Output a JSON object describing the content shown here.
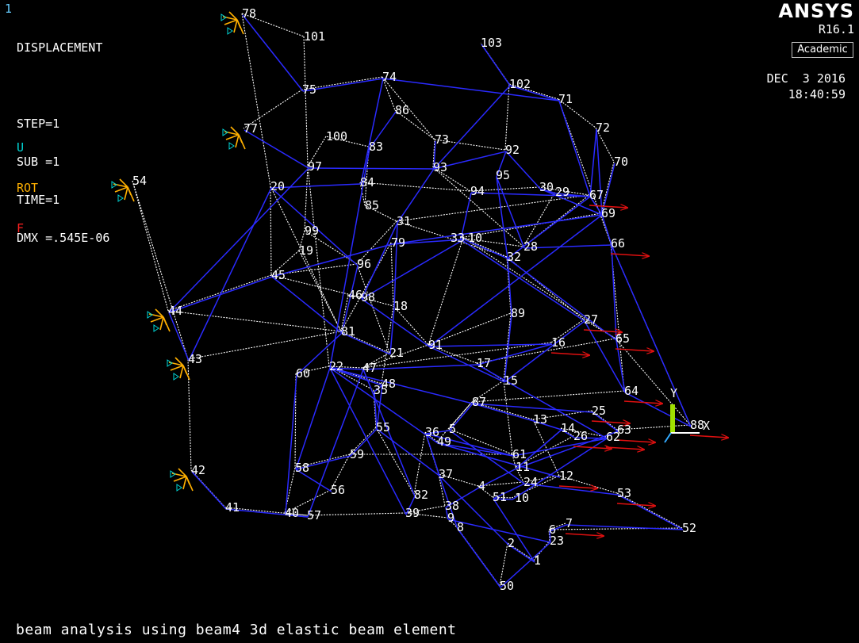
{
  "window_number": "1",
  "header": {
    "lines": [
      "DISPLACEMENT",
      "",
      "STEP=1",
      "SUB =1",
      "TIME=1",
      "DMX =.545E-06"
    ]
  },
  "legend": [
    {
      "label": "U",
      "color": "#00d8d8"
    },
    {
      "label": "ROT",
      "color": "#ffb000"
    },
    {
      "label": "F",
      "color": "#ff2020"
    }
  ],
  "branding": {
    "product": "ANSYS",
    "version": "R16.1",
    "edition": "Academic"
  },
  "date": "DEC  3 2016",
  "time": "18:40:59",
  "triad": {
    "x_label": "X",
    "y_label": "Y"
  },
  "caption": "beam analysis using beam4 3d elastic beam element",
  "colors": {
    "deformed": "#2a2aff",
    "undeformed": "#ffffff",
    "force": "#e01010",
    "support": "#ffb000",
    "triad_y": "#a0e000",
    "triad_x": "#ffffff"
  },
  "nodes": [
    {
      "id": "78"
    },
    {
      "id": "101"
    },
    {
      "id": "103"
    },
    {
      "id": "75"
    },
    {
      "id": "74"
    },
    {
      "id": "102"
    },
    {
      "id": "71"
    },
    {
      "id": "86"
    },
    {
      "id": "77"
    },
    {
      "id": "100"
    },
    {
      "id": "83"
    },
    {
      "id": "73"
    },
    {
      "id": "92"
    },
    {
      "id": "72"
    },
    {
      "id": "70"
    },
    {
      "id": "97"
    },
    {
      "id": "93"
    },
    {
      "id": "95"
    },
    {
      "id": "54"
    },
    {
      "id": "20"
    },
    {
      "id": "84"
    },
    {
      "id": "94"
    },
    {
      "id": "30"
    },
    {
      "id": "29"
    },
    {
      "id": "67"
    },
    {
      "id": "85"
    },
    {
      "id": "69"
    },
    {
      "id": "31"
    },
    {
      "id": "99"
    },
    {
      "id": "10"
    },
    {
      "id": "33"
    },
    {
      "id": "79"
    },
    {
      "id": "19"
    },
    {
      "id": "96"
    },
    {
      "id": "32"
    },
    {
      "id": "28"
    },
    {
      "id": "66"
    },
    {
      "id": "45"
    },
    {
      "id": "46"
    },
    {
      "id": "98"
    },
    {
      "id": "18"
    },
    {
      "id": "44"
    },
    {
      "id": "89"
    },
    {
      "id": "27"
    },
    {
      "id": "81"
    },
    {
      "id": "65"
    },
    {
      "id": "16"
    },
    {
      "id": "91"
    },
    {
      "id": "21"
    },
    {
      "id": "43"
    },
    {
      "id": "22"
    },
    {
      "id": "47"
    },
    {
      "id": "17"
    },
    {
      "id": "60"
    },
    {
      "id": "48"
    },
    {
      "id": "15"
    },
    {
      "id": "64"
    },
    {
      "id": "35"
    },
    {
      "id": "87"
    },
    {
      "id": "25"
    },
    {
      "id": "13"
    },
    {
      "id": "14"
    },
    {
      "id": "63"
    },
    {
      "id": "55"
    },
    {
      "id": "36"
    },
    {
      "id": "5"
    },
    {
      "id": "26"
    },
    {
      "id": "62"
    },
    {
      "id": "49"
    },
    {
      "id": "59"
    },
    {
      "id": "61"
    },
    {
      "id": "58"
    },
    {
      "id": "11"
    },
    {
      "id": "37"
    },
    {
      "id": "42"
    },
    {
      "id": "12"
    },
    {
      "id": "24"
    },
    {
      "id": "4"
    },
    {
      "id": "56"
    },
    {
      "id": "53"
    },
    {
      "id": "82"
    },
    {
      "id": "51"
    },
    {
      "id": "10b"
    },
    {
      "id": "41"
    },
    {
      "id": "38"
    },
    {
      "id": "40"
    },
    {
      "id": "57"
    },
    {
      "id": "39"
    },
    {
      "id": "9"
    },
    {
      "id": "7"
    },
    {
      "id": "8"
    },
    {
      "id": "6"
    },
    {
      "id": "52"
    },
    {
      "id": "23"
    },
    {
      "id": "2"
    },
    {
      "id": "1"
    },
    {
      "id": "50"
    },
    {
      "id": "88"
    }
  ],
  "node_labels": {
    "78": "78",
    "101": "101",
    "103": "103",
    "75": "75",
    "74": "74",
    "102": "102",
    "71": "71",
    "86": "86",
    "77": "77",
    "100": "100",
    "83": "83",
    "73": "73",
    "92": "92",
    "72": "72",
    "70": "70",
    "97": "97",
    "93": "93",
    "95": "95",
    "54": "54",
    "20": "20",
    "84": "84",
    "94": "94",
    "30": "30",
    "29": "29",
    "67": "67",
    "85": "85",
    "69": "69",
    "31": "31",
    "99": "99",
    "10": "10",
    "33": "33",
    "79": "79",
    "19": "19",
    "96": "96",
    "32": "32",
    "28": "28",
    "66": "66",
    "45": "45",
    "46": "46",
    "98": "98",
    "18": "18",
    "44": "44",
    "89": "89",
    "27": "27",
    "81": "81",
    "65": "65",
    "16": "16",
    "91": "91",
    "21": "21",
    "43": "43",
    "22": "22",
    "47": "47",
    "17": "17",
    "60": "60",
    "48": "48",
    "15": "15",
    "64": "64",
    "35": "35",
    "87": "87",
    "25": "25",
    "13": "13",
    "14": "14",
    "63": "63",
    "55": "55",
    "36": "36",
    "5": "5",
    "26": "26",
    "62": "62",
    "49": "49",
    "59": "59",
    "61": "61",
    "58": "58",
    "11": "11",
    "37": "37",
    "42": "42",
    "12": "12",
    "24": "24",
    "4": "4",
    "56": "56",
    "53": "53",
    "82": "82",
    "51": "51",
    "10b": "10",
    "41": "41",
    "38": "38",
    "40": "40",
    "57": "57",
    "39": "39",
    "9": "9",
    "7": "7",
    "8": "8",
    "6": "6",
    "52": "52",
    "23": "23",
    "2": "2",
    "1": "1",
    "50": "50",
    "88": "88"
  }
}
